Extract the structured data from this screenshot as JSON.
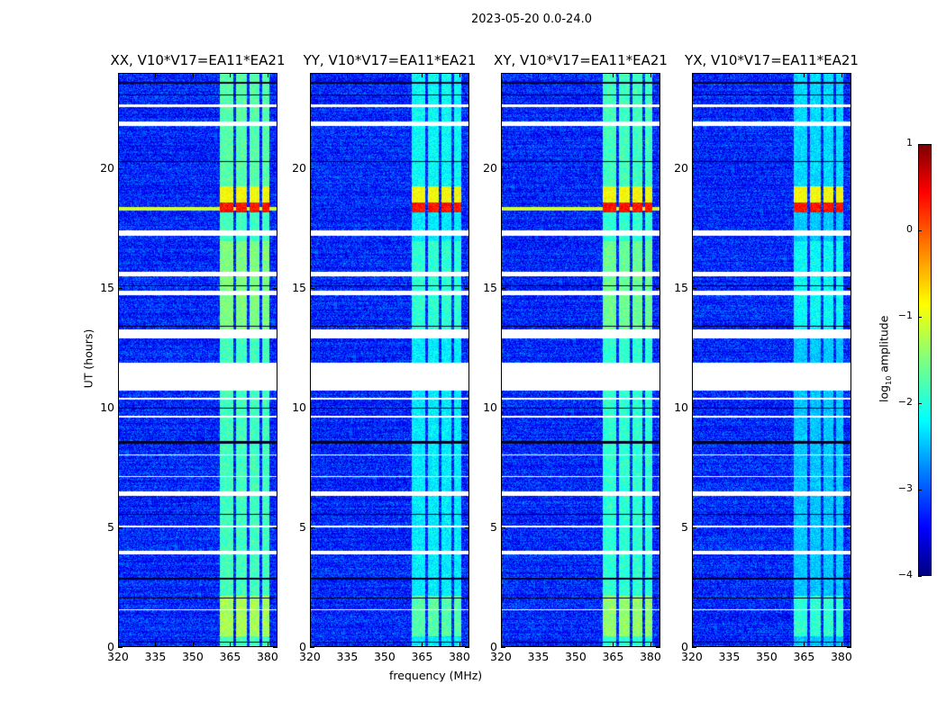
{
  "chart_data": {
    "type": "heatmap",
    "suptitle": "2023-05-20 0.0-24.0",
    "xlabel": "frequency (MHz)",
    "ylabel": "UT (hours)",
    "xlim": [
      320,
      384
    ],
    "ylim": [
      0,
      24
    ],
    "xticks": [
      320,
      335,
      350,
      365,
      380
    ],
    "yticks": [
      0,
      5,
      10,
      15,
      20
    ],
    "panels": [
      {
        "title": "XX, V10*V17=EA11*EA21",
        "band_level": -1.3
      },
      {
        "title": "YY, V10*V17=EA11*EA21",
        "band_level": -1.7
      },
      {
        "title": "XY, V10*V17=EA11*EA21",
        "band_level": -1.4
      },
      {
        "title": "YX, V10*V17=EA11*EA21",
        "band_level": -1.9
      }
    ],
    "background_level": -3.2,
    "rfi_band_channels_mhz": [
      [
        361,
        366.5
      ],
      [
        367.5,
        372
      ],
      [
        373,
        377
      ],
      [
        378,
        381
      ]
    ],
    "rfi_strong_hours": [
      18.2,
      19.3
    ],
    "flagged_hours_white": [
      [
        3.85,
        4.0
      ],
      [
        6.3,
        6.5
      ],
      [
        10.7,
        11.9
      ],
      [
        12.9,
        13.3
      ],
      [
        14.7,
        14.9
      ],
      [
        15.5,
        15.7
      ],
      [
        17.2,
        17.45
      ],
      [
        21.8,
        22.0
      ],
      [
        22.6,
        22.7
      ],
      [
        1.5,
        1.55
      ],
      [
        5.0,
        5.05
      ],
      [
        7.1,
        7.15
      ],
      [
        8.0,
        8.05
      ],
      [
        9.6,
        9.65
      ],
      [
        10.35,
        10.4
      ]
    ],
    "flagged_hours_black": [
      [
        0.15,
        0.2
      ],
      [
        2.0,
        2.05
      ],
      [
        2.8,
        2.85
      ],
      [
        5.5,
        5.55
      ],
      [
        8.5,
        8.6
      ],
      [
        9.95,
        10.0
      ],
      [
        13.4,
        13.45
      ],
      [
        15.1,
        15.15
      ],
      [
        20.3,
        20.35
      ],
      [
        23.1,
        23.15
      ],
      [
        23.6,
        23.65
      ]
    ],
    "colorbar": {
      "label": "log10 amplitude",
      "label_main": "log",
      "label_sub": "10",
      "label_rest": " amplitude",
      "range": [
        -4,
        1
      ],
      "ticks": [
        1,
        0,
        -1,
        -2,
        -3,
        -4
      ],
      "tick_labels": [
        "1",
        "0",
        "−1",
        "−2",
        "−3",
        "−4"
      ],
      "colormap": "jet"
    }
  }
}
